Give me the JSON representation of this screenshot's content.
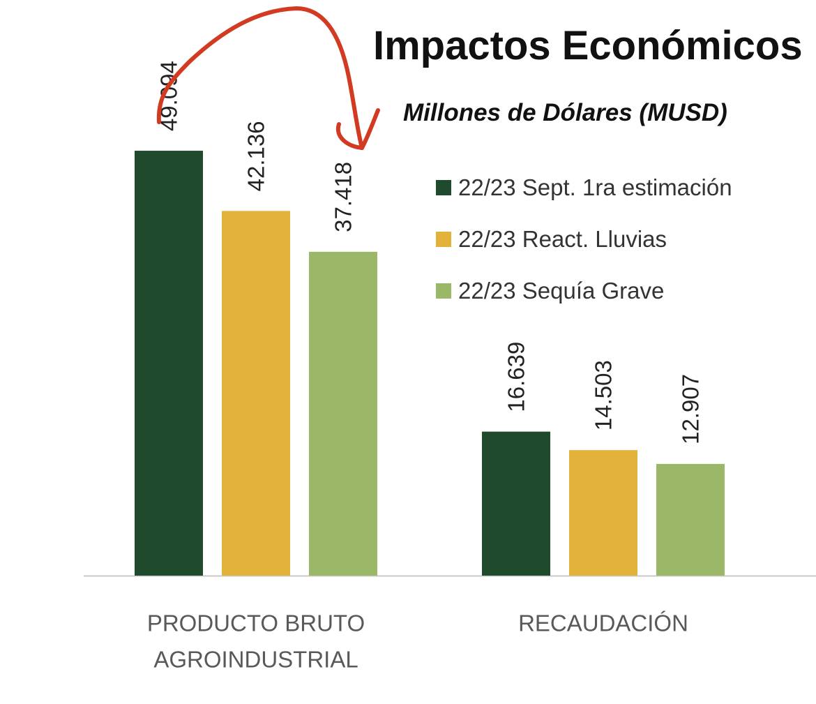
{
  "chart_data": {
    "type": "bar",
    "title": "Impactos Económicos",
    "subtitle": "Millones de Dólares (MUSD)",
    "xlabel": "",
    "ylabel": "",
    "ylim": [
      0,
      52000
    ],
    "grid": false,
    "legend_position": "top-right",
    "categories": [
      "PRODUCTO BRUTO AGROINDUSTRIAL",
      "RECAUDACIÓN"
    ],
    "category_lines": [
      [
        "PRODUCTO BRUTO",
        "AGROINDUSTRIAL"
      ],
      [
        "RECAUDACIÓN"
      ]
    ],
    "series": [
      {
        "name": "22/23 Sept. 1ra estimación",
        "color": "#1f4a2b",
        "values": [
          49094,
          16639
        ],
        "labels": [
          "49.094",
          "16.639"
        ]
      },
      {
        "name": "22/23 React. Lluvias",
        "color": "#e2b23b",
        "values": [
          42136,
          14503
        ],
        "labels": [
          "42.136",
          "14.503"
        ]
      },
      {
        "name": "22/23 Sequía Grave",
        "color": "#9bb868",
        "values": [
          37418,
          12907
        ],
        "labels": [
          "37.418",
          "12.907"
        ]
      }
    ]
  },
  "annotation_color": "#d23a22"
}
